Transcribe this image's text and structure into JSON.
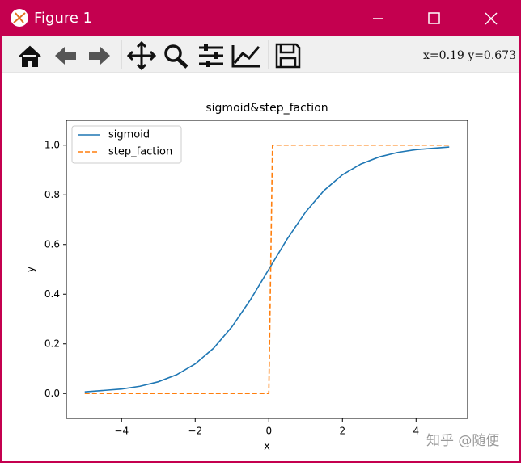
{
  "window": {
    "title": "Figure 1",
    "coordinates": "x=0.19 y=0.673",
    "watermark": "知乎 @随便"
  },
  "chart_data": {
    "type": "line",
    "title": "sigmoid&step_faction",
    "x_label": "x",
    "y_label": "y",
    "xlim": [
      -5.5,
      5.4
    ],
    "ylim": [
      -0.1,
      1.1
    ],
    "xticks": [
      {
        "value": -4,
        "label": "−4"
      },
      {
        "value": -2,
        "label": "−2"
      },
      0,
      2,
      4
    ],
    "yticks": [
      {
        "value": 0,
        "label": "0.0"
      },
      0.2,
      0.4,
      0.6,
      0.8,
      {
        "value": 1,
        "label": "1.0"
      }
    ],
    "legend": "upper left",
    "series": [
      {
        "name": "sigmoid",
        "color": "#1f77b4",
        "linestyle": "solid",
        "x": [
          -5,
          -4,
          -3.5,
          -3,
          -2.5,
          -2,
          -1.5,
          -1,
          -0.5,
          0,
          0.5,
          1,
          1.5,
          2,
          2.5,
          3,
          3.5,
          4,
          4.9
        ],
        "values": [
          0.0067,
          0.018,
          0.0293,
          0.0474,
          0.0759,
          0.1192,
          0.1824,
          0.2689,
          0.3775,
          0.5,
          0.6225,
          0.7311,
          0.8176,
          0.8808,
          0.9241,
          0.9526,
          0.9707,
          0.982,
          0.9926
        ]
      },
      {
        "name": "step_faction",
        "color": "#ff7f0e",
        "linestyle": "dashed",
        "x": [
          -5,
          0,
          0.1,
          4.9
        ],
        "values": [
          0,
          0,
          1,
          1
        ]
      }
    ]
  }
}
